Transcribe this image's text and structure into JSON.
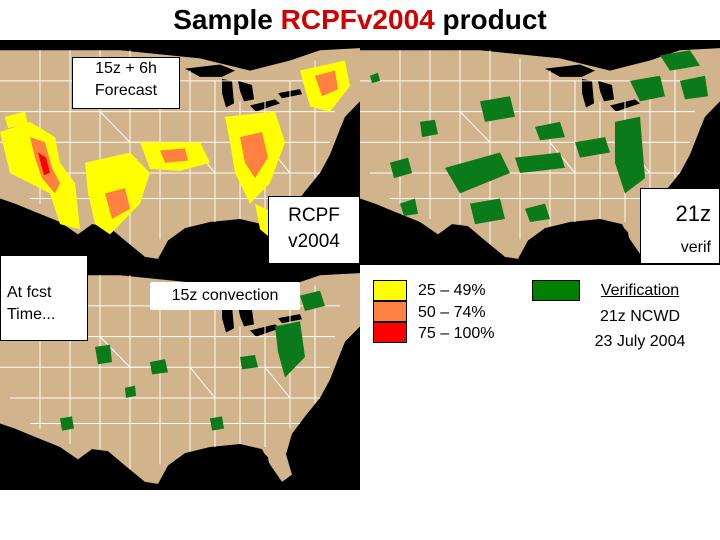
{
  "title": {
    "prefix": "Sample ",
    "highlight": "RCPFv2004",
    "suffix": " product"
  },
  "panels": {
    "forecast": {
      "label_line1": "15z + 6h",
      "label_line2": "Forecast",
      "product_line1": "RCPF",
      "product_line2": "v2004"
    },
    "verification": {
      "time": "21z",
      "label": "verif"
    },
    "convection": {
      "label_line1": "At fcst",
      "label_line2": "Time...",
      "title": "15z convection"
    }
  },
  "legend": {
    "items": [
      {
        "label": "25 – 49%",
        "color": "#ffff00"
      },
      {
        "label": "50 – 74%",
        "color": "#ff8040"
      },
      {
        "label": "75 – 100%",
        "color": "#ff0000"
      }
    ]
  },
  "verification_key": {
    "swatch_color": "#008000",
    "heading": "Verification",
    "line2": "21z NCWD",
    "line3": "23 July 2004"
  },
  "colors": {
    "land": "#d2b48c",
    "water": "#000000",
    "border": "#ffffff",
    "convection": "#0a7a1a",
    "title_highlight": "#d40000"
  }
}
